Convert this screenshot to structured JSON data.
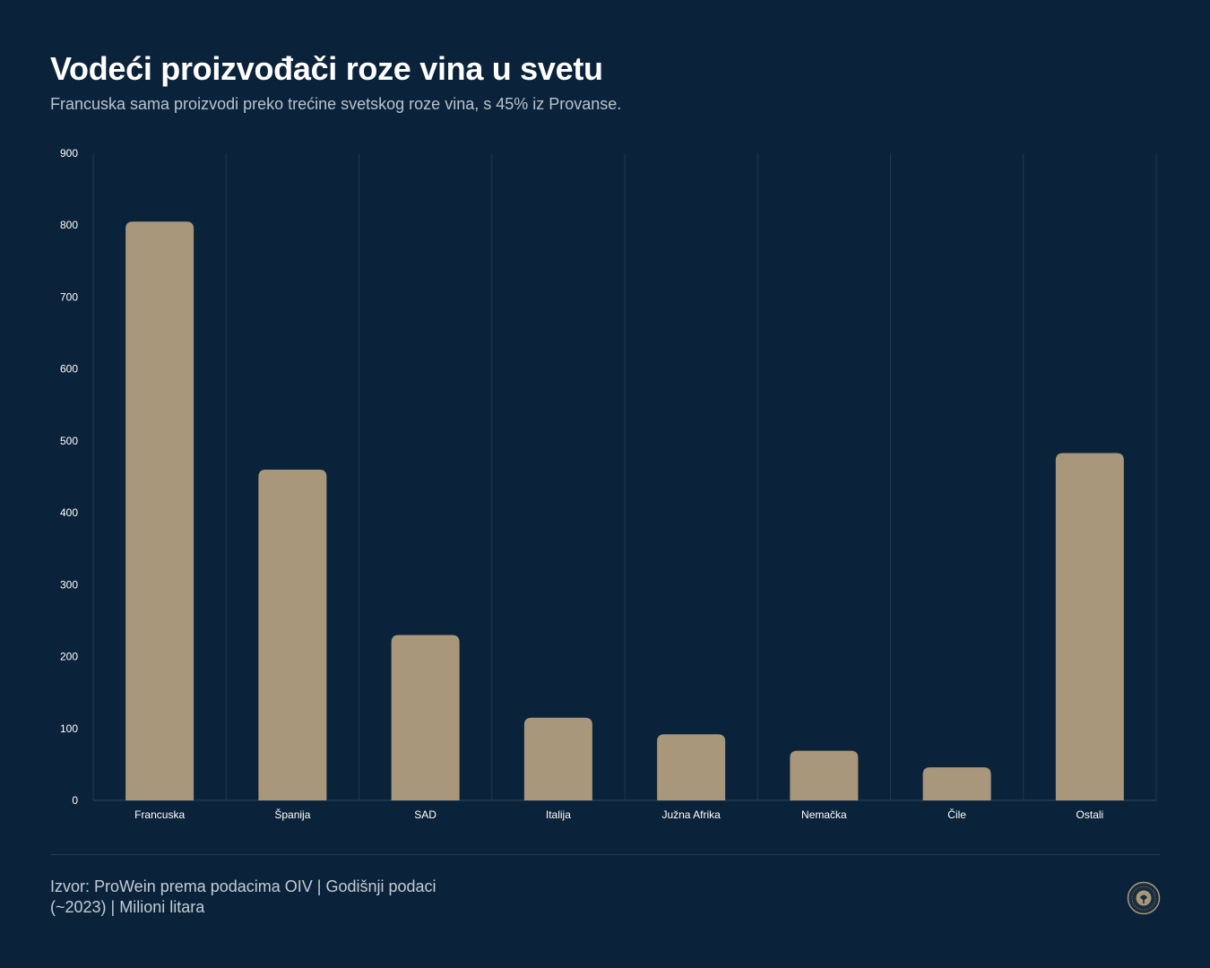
{
  "header": {
    "title": "Vodeći proizvođači roze vina u svetu",
    "subtitle": "Francuska sama proizvodi preko trećine svetskog roze vina, s 45% iz Provanse."
  },
  "footer": {
    "source": "Izvor: ProWein prema podacima OIV | Godišnji podaci (~2023) | Milioni litara"
  },
  "colors": {
    "background": "#0b233a",
    "bar": "#a8977b",
    "grid": "#22384f"
  },
  "logo": {
    "icon": "seal-logo-icon"
  },
  "chart_data": {
    "type": "bar",
    "categories": [
      "Francuska",
      "Španija",
      "SAD",
      "Italija",
      "Južna Afrika",
      "Nemačka",
      "Čile",
      "Ostali"
    ],
    "values": [
      805,
      460,
      230,
      115,
      92,
      69,
      46,
      483
    ],
    "ylim": [
      0,
      900
    ],
    "yticks": [
      0,
      100,
      200,
      300,
      400,
      500,
      600,
      700,
      800,
      900
    ],
    "title": "",
    "xlabel": "",
    "ylabel": "",
    "grid": "vertical",
    "legend": "none"
  }
}
